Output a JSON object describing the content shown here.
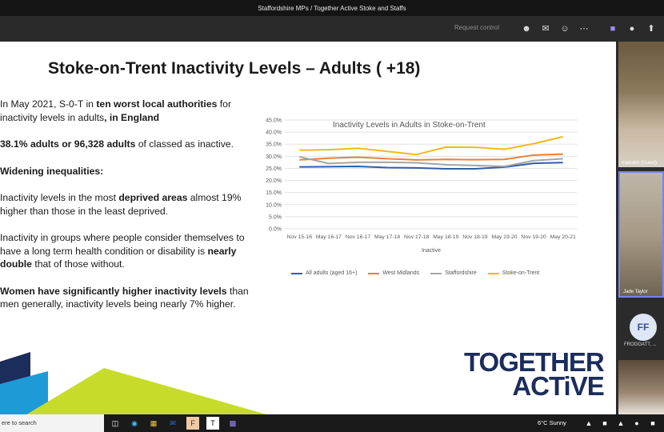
{
  "window": {
    "title": "Staffordshire MPs / Together Active Stoke and Staffs"
  },
  "toolbar": {
    "request_control": "Request control"
  },
  "slide": {
    "title": "Stoke-on-Trent Inactivity Levels – Adults ( +18)",
    "p1_a": "In May 2021, S-0-T in ",
    "p1_b": "ten worst local authorities",
    "p1_c": " for inactivity levels in adults",
    "p1_d": ", in England",
    "p2_a": "38.1% adults  or 96,328 adults",
    "p2_b": " of classed as inactive.",
    "p3": "Widening inequalities:",
    "p4_a": " Inactivity levels in the most ",
    "p4_b": "deprived areas",
    "p4_c": " almost 19% higher than those in the least deprived.",
    "p5_a": "Inactivity in groups where people consider themselves to have a long term health condition or disability is ",
    "p5_b": "nearly double",
    "p5_c": " that of those without.",
    "p6_a": "Women have significantly higher inactivity levels",
    "p6_b": " than men generally, inactivity levels being nearly 7% higher.",
    "logo_line1": "TOGETHER",
    "logo_line2": "ACTiVE"
  },
  "chart_data": {
    "type": "line",
    "title": "Inactivity Levels in Adults in Stoke-on-Trent",
    "xlabel": "Inactive",
    "ylabel": "",
    "ylim": [
      0,
      45
    ],
    "yticks": [
      "0.0%",
      "5.0%",
      "10.0%",
      "15.0%",
      "20.0%",
      "25.0%",
      "30.0%",
      "35.0%",
      "40.0%",
      "45.0%"
    ],
    "categories": [
      "Nov 15-16",
      "May 16-17",
      "Nov 16-17",
      "May 17-18",
      "Nov 17-18",
      "May 18-19",
      "Nov 18-19",
      "May 19-20",
      "Nov 19-20",
      "May 20-21"
    ],
    "series": [
      {
        "name": "All adults (aged 16+)",
        "color": "#2e5fa6",
        "values": [
          25.6,
          25.7,
          25.8,
          25.3,
          25.2,
          24.8,
          24.8,
          25.5,
          27.1,
          27.4
        ]
      },
      {
        "name": "West Midlands",
        "color": "#e8803a",
        "values": [
          28.5,
          29.2,
          29.6,
          29.0,
          28.5,
          28.7,
          28.6,
          28.7,
          30.5,
          30.9
        ]
      },
      {
        "name": "Staffordshire",
        "color": "#a5a5a5",
        "values": [
          29.8,
          27.0,
          27.5,
          27.5,
          27.3,
          26.5,
          26.2,
          25.8,
          28.2,
          29.0
        ]
      },
      {
        "name": "Stoke-on-Trent",
        "color": "#f5b81c",
        "values": [
          32.5,
          32.7,
          33.3,
          32.0,
          30.7,
          33.8,
          33.7,
          32.9,
          35.2,
          38.1
        ]
      }
    ],
    "legend_position": "bottom",
    "grid": true
  },
  "participants": [
    {
      "name": "malcolm (Guest)"
    },
    {
      "name": "Jade Taylor"
    },
    {
      "initials": "FF",
      "name": "FROGGATT, ..."
    }
  ],
  "taskbar": {
    "search": "ere to search",
    "weather": "6°C  Sunny"
  }
}
